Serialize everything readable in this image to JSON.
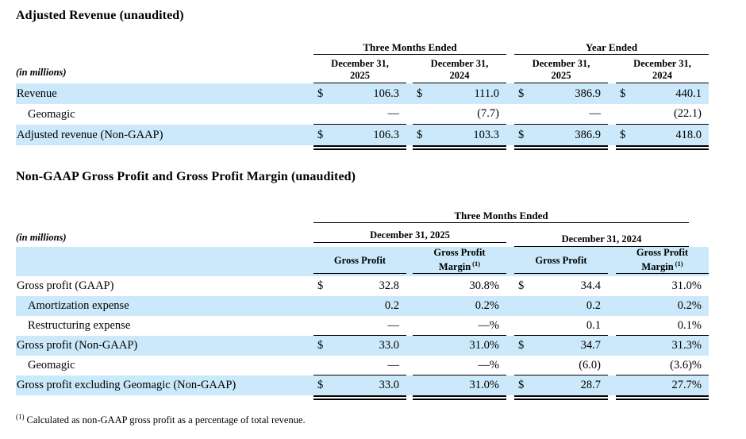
{
  "page": {
    "background": "#ffffff",
    "highlight_color": "#cbe9fa",
    "rule_color": "#000000"
  },
  "adjusted_revenue": {
    "title": "Adjusted Revenue (unaudited)",
    "units_label": "(in millions)",
    "groups": [
      {
        "label": "Three Months Ended"
      },
      {
        "label": "Year Ended"
      }
    ],
    "columns": [
      {
        "line1": "December 31,",
        "line2": "2025"
      },
      {
        "line1": "December 31,",
        "line2": "2024"
      },
      {
        "line1": "December 31,",
        "line2": "2025"
      },
      {
        "line1": "December 31,",
        "line2": "2024"
      }
    ],
    "rows": [
      {
        "label": "Revenue",
        "cells": [
          {
            "cur": "$",
            "val": "106.3"
          },
          {
            "cur": "$",
            "val": "111.0"
          },
          {
            "cur": "$",
            "val": "386.9"
          },
          {
            "cur": "$",
            "val": "440.1"
          }
        ]
      },
      {
        "label": "Geomagic",
        "cells": [
          {
            "cur": "",
            "val": "—"
          },
          {
            "cur": "",
            "val": "(7.7)"
          },
          {
            "cur": "",
            "val": "—"
          },
          {
            "cur": "",
            "val": "(22.1)"
          }
        ]
      },
      {
        "label": "Adjusted revenue (Non-GAAP)",
        "cells": [
          {
            "cur": "$",
            "val": "106.3"
          },
          {
            "cur": "$",
            "val": "103.3"
          },
          {
            "cur": "$",
            "val": "386.9"
          },
          {
            "cur": "$",
            "val": "418.0"
          }
        ]
      }
    ]
  },
  "gross_profit": {
    "title": "Non-GAAP Gross Profit and Gross Profit Margin (unaudited)",
    "units_label": "(in millions)",
    "group_label": "Three Months Ended",
    "subgroups": [
      {
        "label": "December 31, 2025"
      },
      {
        "label": "December 31, 2024"
      }
    ],
    "columns": [
      {
        "line1": "Gross Profit",
        "line2": "",
        "sup": ""
      },
      {
        "line1": "Gross Profit",
        "line2": "Margin",
        "sup": "(1)"
      },
      {
        "line1": "Gross Profit",
        "line2": "",
        "sup": ""
      },
      {
        "line1": "Gross Profit",
        "line2": "Margin",
        "sup": "(1)"
      }
    ],
    "rows": [
      {
        "label": "Gross profit (GAAP)",
        "cells": [
          {
            "cur": "$",
            "val": "32.8"
          },
          {
            "cur": "",
            "val": "30.8%"
          },
          {
            "cur": "$",
            "val": "34.4"
          },
          {
            "cur": "",
            "val": "31.0%"
          }
        ]
      },
      {
        "label": "Amortization expense",
        "cells": [
          {
            "cur": "",
            "val": "0.2"
          },
          {
            "cur": "",
            "val": "0.2%"
          },
          {
            "cur": "",
            "val": "0.2"
          },
          {
            "cur": "",
            "val": "0.2%"
          }
        ]
      },
      {
        "label": "Restructuring expense",
        "cells": [
          {
            "cur": "",
            "val": "—"
          },
          {
            "cur": "",
            "val": "—%"
          },
          {
            "cur": "",
            "val": "0.1"
          },
          {
            "cur": "",
            "val": "0.1%"
          }
        ]
      },
      {
        "label": "Gross profit (Non-GAAP)",
        "cells": [
          {
            "cur": "$",
            "val": "33.0"
          },
          {
            "cur": "",
            "val": "31.0%"
          },
          {
            "cur": "$",
            "val": "34.7"
          },
          {
            "cur": "",
            "val": "31.3%"
          }
        ]
      },
      {
        "label": "Geomagic",
        "cells": [
          {
            "cur": "",
            "val": "—"
          },
          {
            "cur": "",
            "val": "—%"
          },
          {
            "cur": "",
            "val": "(6.0)"
          },
          {
            "cur": "",
            "val": "(3.6)%"
          }
        ]
      },
      {
        "label": "Gross profit excluding Geomagic (Non-GAAP)",
        "cells": [
          {
            "cur": "$",
            "val": "33.0"
          },
          {
            "cur": "",
            "val": "31.0%"
          },
          {
            "cur": "$",
            "val": "28.7"
          },
          {
            "cur": "",
            "val": "27.7%"
          }
        ]
      }
    ]
  },
  "footnote": {
    "marker": "(1)",
    "text": "Calculated as non-GAAP gross profit as a percentage of total revenue."
  }
}
